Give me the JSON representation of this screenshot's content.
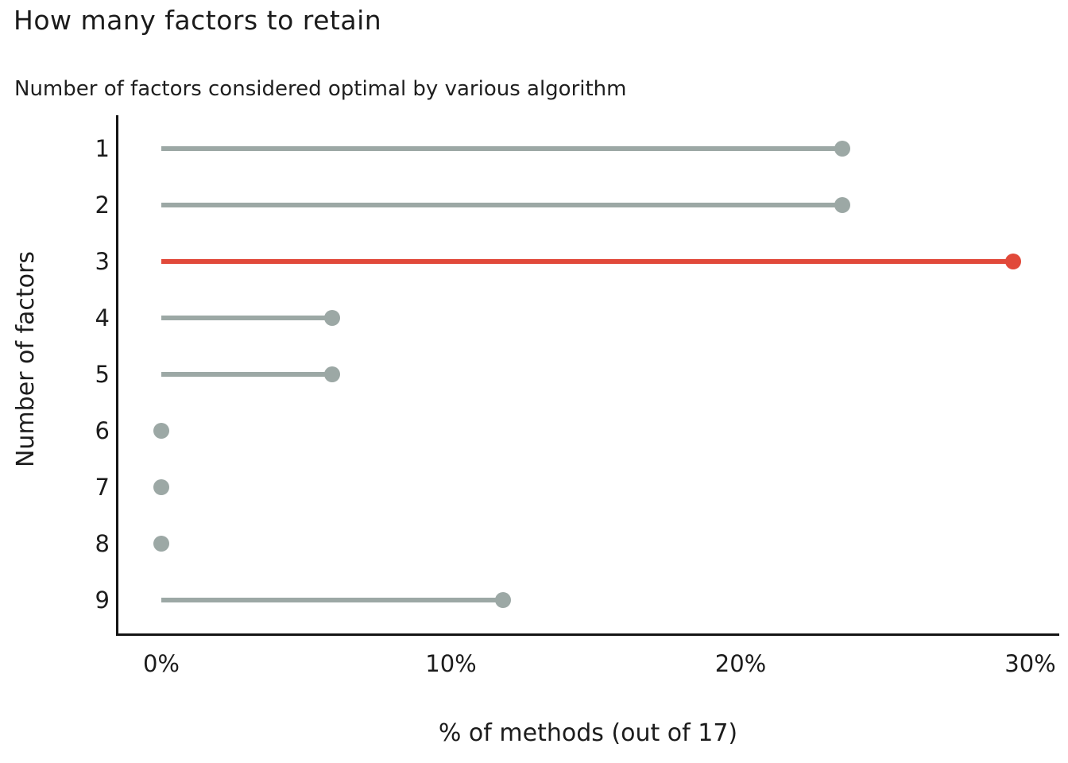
{
  "title": "How many factors to retain",
  "subtitle": "Number of factors considered optimal by various algorithm",
  "chart_data": {
    "type": "bar",
    "subtype": "lollipop",
    "orientation": "horizontal",
    "title": "How many factors to retain",
    "subtitle": "Number of factors considered optimal by various algorithm",
    "categories": [
      "1",
      "2",
      "3",
      "4",
      "5",
      "6",
      "7",
      "8",
      "9"
    ],
    "values": [
      23.5,
      23.5,
      29.4,
      5.9,
      5.9,
      0,
      0,
      0,
      11.8
    ],
    "values_note": "percent of 17 methods: 4/17, 4/17, 5/17, 1/17, 1/17, 0, 0, 0, 2/17",
    "highlight_category": "3",
    "xlabel": "% of methods (out of 17)",
    "ylabel": "Number of factors",
    "xlim": [
      0,
      30
    ],
    "xticks": [
      {
        "value": 0,
        "label": "0%"
      },
      {
        "value": 10,
        "label": "10%"
      },
      {
        "value": 20,
        "label": "20%"
      },
      {
        "value": 30,
        "label": "30%"
      }
    ],
    "grid": false,
    "legend": false,
    "colors": {
      "default": "#9CA8A5",
      "highlight": "#E1493A",
      "axis": "#141414",
      "text": "#1c1c1c"
    }
  }
}
